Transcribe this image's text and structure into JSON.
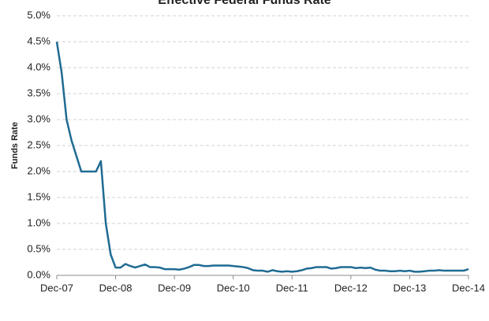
{
  "chart_data": {
    "type": "line",
    "title": "Effective Federal Funds Rate",
    "y_label": "Funds Rate",
    "x": [
      "Dec-07",
      "Jan-08",
      "Feb-08",
      "Mar-08",
      "Apr-08",
      "May-08",
      "Jun-08",
      "Jul-08",
      "Aug-08",
      "Sep-08",
      "Oct-08",
      "Nov-08",
      "Dec-08",
      "Jan-09",
      "Feb-09",
      "Mar-09",
      "Apr-09",
      "May-09",
      "Jun-09",
      "Jul-09",
      "Aug-09",
      "Sep-09",
      "Oct-09",
      "Nov-09",
      "Dec-09",
      "Jan-10",
      "Feb-10",
      "Mar-10",
      "Apr-10",
      "May-10",
      "Jun-10",
      "Jul-10",
      "Aug-10",
      "Sep-10",
      "Oct-10",
      "Nov-10",
      "Dec-10",
      "Jan-11",
      "Feb-11",
      "Mar-11",
      "Apr-11",
      "May-11",
      "Jun-11",
      "Jul-11",
      "Aug-11",
      "Sep-11",
      "Oct-11",
      "Nov-11",
      "Dec-11",
      "Jan-12",
      "Feb-12",
      "Mar-12",
      "Apr-12",
      "May-12",
      "Jun-12",
      "Jul-12",
      "Aug-12",
      "Sep-12",
      "Oct-12",
      "Nov-12",
      "Dec-12",
      "Jan-13",
      "Feb-13",
      "Mar-13",
      "Apr-13",
      "May-13",
      "Jun-13",
      "Jul-13",
      "Aug-13",
      "Sep-13",
      "Oct-13",
      "Nov-13",
      "Dec-13",
      "Jan-14",
      "Feb-14",
      "Mar-14",
      "Apr-14",
      "May-14",
      "Jun-14",
      "Jul-14",
      "Aug-14",
      "Sep-14",
      "Oct-14",
      "Nov-14",
      "Dec-14"
    ],
    "xticks": [
      "Dec-07",
      "Dec-08",
      "Dec-09",
      "Dec-10",
      "Dec-11",
      "Dec-12",
      "Dec-13",
      "Dec-14"
    ],
    "series": [
      {
        "name": "Funds Rate",
        "color": "#1f6b93",
        "values": [
          4.5,
          3.9,
          3.0,
          2.6,
          2.3,
          2.0,
          2.0,
          2.0,
          2.0,
          2.2,
          1.0,
          0.4,
          0.15,
          0.15,
          0.22,
          0.18,
          0.15,
          0.18,
          0.21,
          0.16,
          0.16,
          0.15,
          0.12,
          0.12,
          0.12,
          0.11,
          0.13,
          0.16,
          0.2,
          0.2,
          0.18,
          0.18,
          0.19,
          0.19,
          0.19,
          0.19,
          0.18,
          0.17,
          0.16,
          0.14,
          0.1,
          0.09,
          0.09,
          0.07,
          0.1,
          0.08,
          0.07,
          0.08,
          0.07,
          0.08,
          0.1,
          0.13,
          0.14,
          0.16,
          0.16,
          0.16,
          0.13,
          0.14,
          0.16,
          0.16,
          0.16,
          0.14,
          0.15,
          0.14,
          0.15,
          0.11,
          0.09,
          0.09,
          0.08,
          0.08,
          0.09,
          0.08,
          0.09,
          0.07,
          0.07,
          0.08,
          0.09,
          0.09,
          0.1,
          0.09,
          0.09,
          0.09,
          0.09,
          0.09,
          0.12
        ]
      }
    ],
    "ylim": [
      0,
      5
    ],
    "yticks": [
      {
        "value": 0,
        "label": "0.0%"
      },
      {
        "value": 0.5,
        "label": "0.5%"
      },
      {
        "value": 1,
        "label": "1.0%"
      },
      {
        "value": 1.5,
        "label": "1.5%"
      },
      {
        "value": 2,
        "label": "2.0%"
      },
      {
        "value": 2.5,
        "label": "2.5%"
      },
      {
        "value": 3,
        "label": "3.0%"
      },
      {
        "value": 3.5,
        "label": "3.5%"
      },
      {
        "value": 4,
        "label": "4.0%"
      },
      {
        "value": 4.5,
        "label": "4.5%"
      },
      {
        "value": 5,
        "label": "5.0%"
      }
    ],
    "grid": true
  }
}
